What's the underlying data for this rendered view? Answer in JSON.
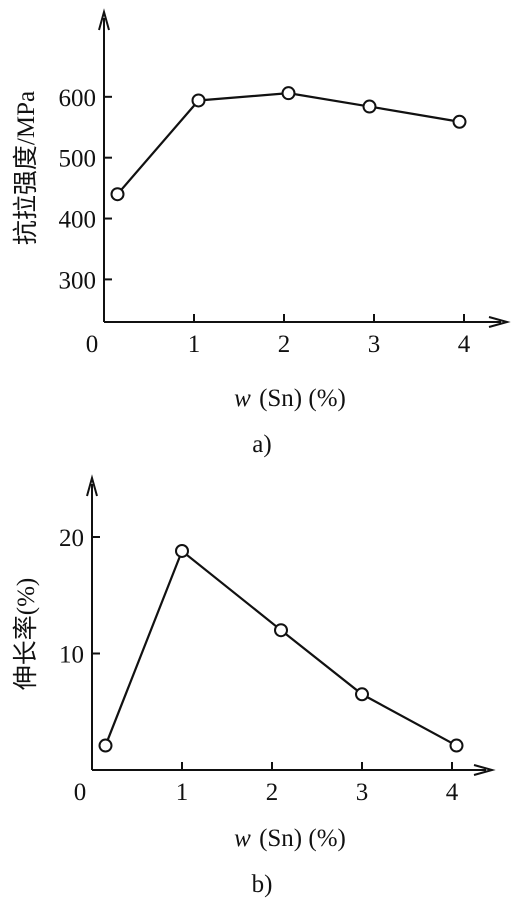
{
  "chart_data": [
    {
      "type": "line",
      "ylabel": "抗拉强度/MPa",
      "xlabel_var": "w",
      "xlabel_rest": "(Sn) (%)",
      "caption": "a)",
      "xticks": [
        "0",
        "1",
        "2",
        "3",
        "4"
      ],
      "yticks": [
        "300",
        "400",
        "500",
        "600"
      ],
      "xlim": [
        0,
        4.4
      ],
      "ylim": [
        230,
        700
      ],
      "x": [
        0.15,
        1.05,
        2.05,
        2.95,
        3.95
      ],
      "y": [
        440,
        594,
        606,
        584,
        559
      ],
      "grid": false
    },
    {
      "type": "line",
      "ylabel": "伸长率(%)",
      "xlabel_var": "w",
      "xlabel_rest": "(Sn) (%)",
      "caption": "b)",
      "xticks": [
        "0",
        "1",
        "2",
        "3",
        "4"
      ],
      "yticks": [
        "10",
        "20"
      ],
      "xlim": [
        0,
        4.4
      ],
      "ylim": [
        0,
        25
      ],
      "x": [
        0.15,
        1.0,
        2.1,
        3.0,
        4.05
      ],
      "y": [
        2.1,
        18.8,
        12.0,
        6.5,
        2.1
      ],
      "grid": false
    }
  ]
}
